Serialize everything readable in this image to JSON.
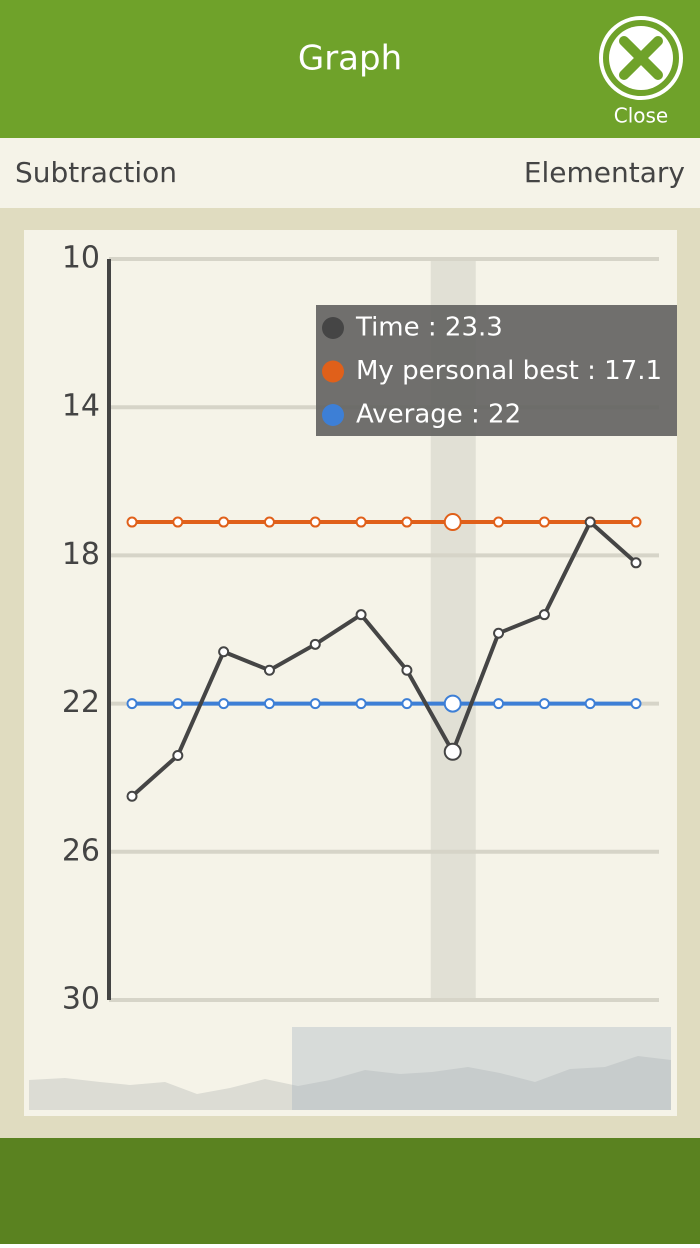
{
  "header": {
    "title": "Graph",
    "close": "Close"
  },
  "subheader": {
    "left": "Subtraction",
    "right": "Elementary"
  },
  "chart_data": {
    "type": "line",
    "x": [
      1,
      2,
      3,
      4,
      5,
      6,
      7,
      8,
      9,
      10,
      11,
      12
    ],
    "xlim": [
      1,
      12
    ],
    "series": [
      {
        "name": "Time",
        "color": "#454545",
        "values": [
          24.5,
          23.4,
          20.6,
          21.1,
          20.4,
          19.6,
          21.1,
          23.3,
          20.1,
          19.6,
          17.1,
          18.2
        ]
      },
      {
        "name": "My personal best",
        "color": "#e0601a",
        "values": [
          17.1,
          17.1,
          17.1,
          17.1,
          17.1,
          17.1,
          17.1,
          17.1,
          17.1,
          17.1,
          17.1,
          17.1
        ]
      },
      {
        "name": "Average",
        "color": "#3d7fd6",
        "values": [
          22,
          22,
          22,
          22,
          22,
          22,
          22,
          22,
          22,
          22,
          22,
          22
        ]
      }
    ],
    "ylim": [
      10,
      30
    ],
    "y_inverted": true,
    "yticks": [
      10,
      14,
      18,
      22,
      26,
      30
    ],
    "grid": true,
    "highlight_index": 7,
    "tooltip": [
      "Time : 23.3",
      "My personal best : 17.1",
      "Average : 22"
    ]
  }
}
